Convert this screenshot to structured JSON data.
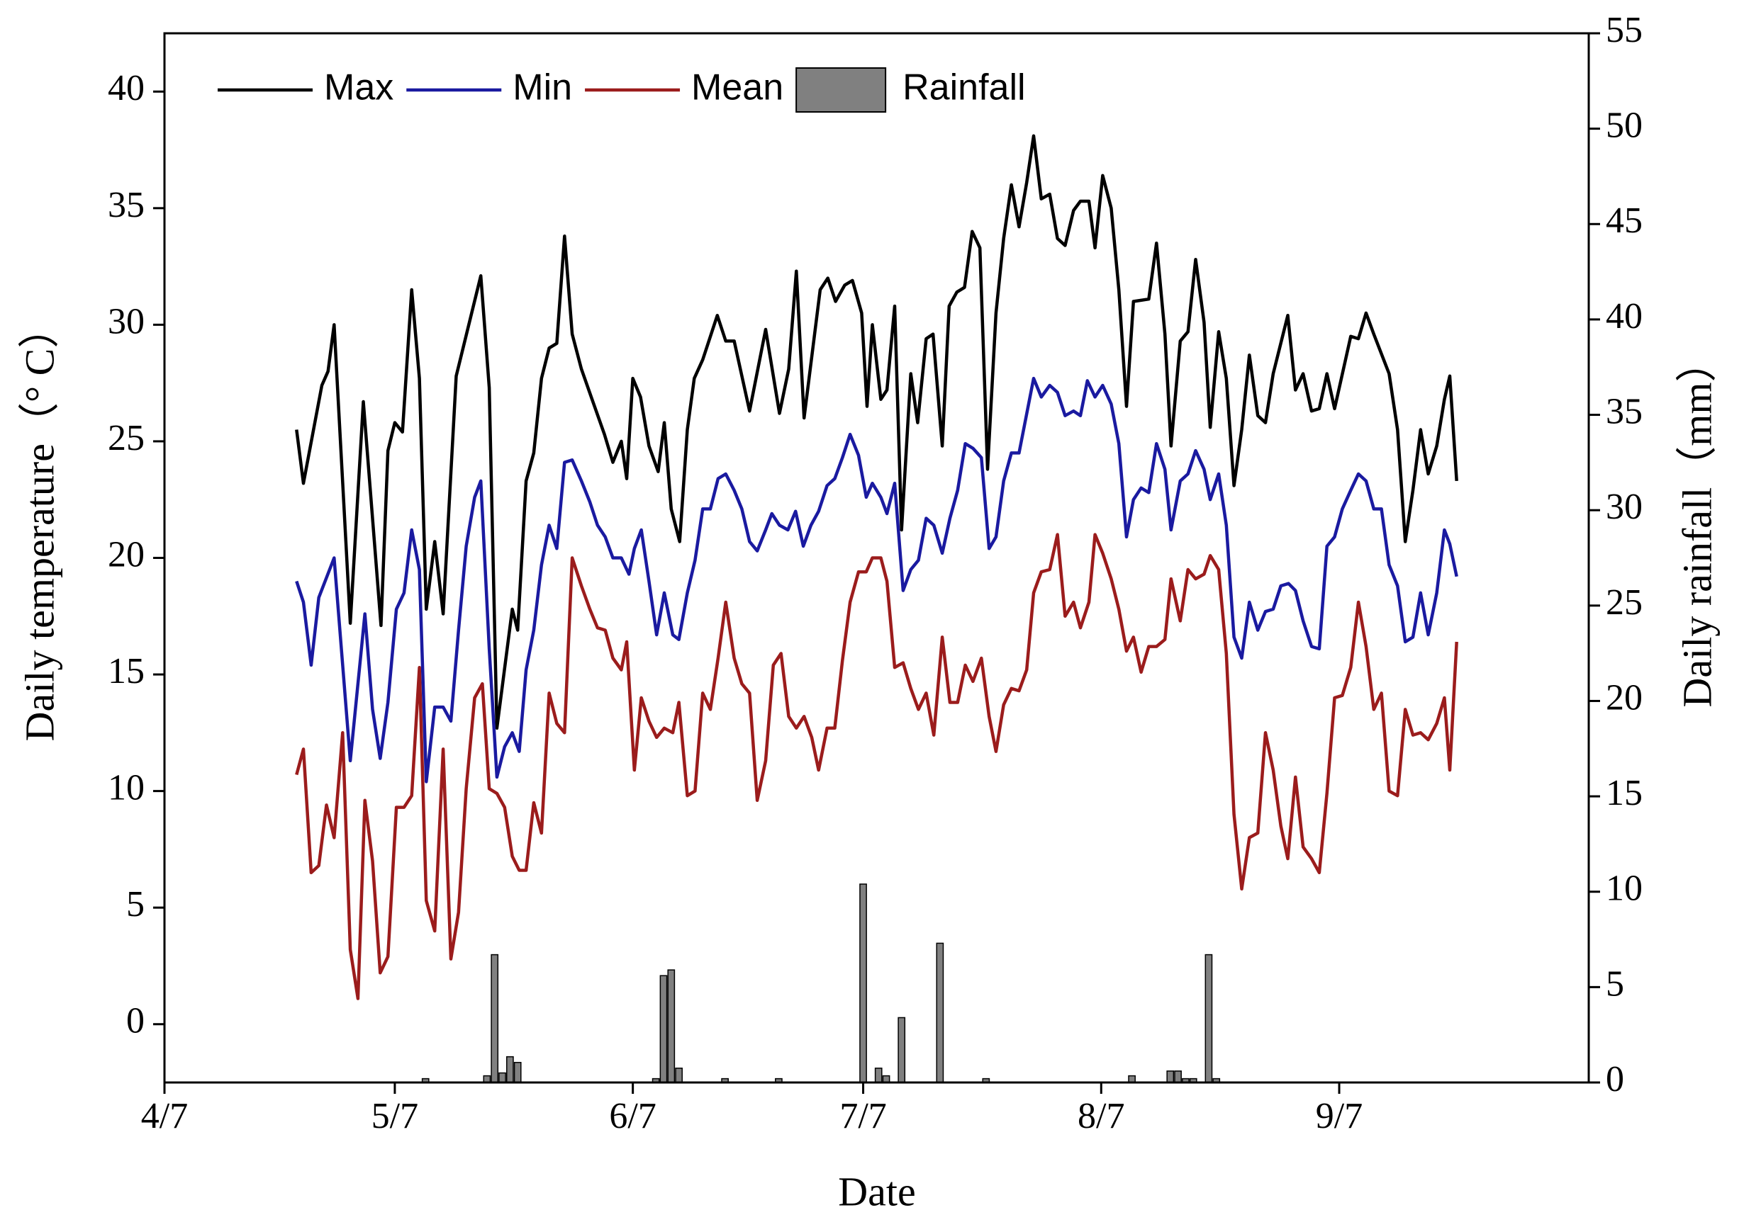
{
  "chart_data": {
    "type": "line",
    "x_label": "Date",
    "y_label": "Daily temperature（° C）",
    "y2_label": "Daily rainfall（mm）",
    "xlim": [
      0,
      185.5
    ],
    "xticks": [
      {
        "value": 0,
        "label": "4/7"
      },
      {
        "value": 30,
        "label": "5/7"
      },
      {
        "value": 61,
        "label": "6/7"
      },
      {
        "value": 91,
        "label": "7/7"
      },
      {
        "value": 122,
        "label": "8/7"
      },
      {
        "value": 153,
        "label": "9/7"
      }
    ],
    "ylim": [
      -2.5,
      42.5
    ],
    "yticks": [
      0,
      5,
      10,
      15,
      20,
      25,
      30,
      35,
      40
    ],
    "y2lim": [
      0,
      55
    ],
    "y2ticks": [
      0,
      5,
      10,
      15,
      20,
      25,
      30,
      35,
      40,
      45,
      50,
      55
    ],
    "legend": "upper left",
    "series": [
      {
        "name": "Max",
        "color": "#000000",
        "x": [
          17.2,
          18.1,
          20.5,
          21.3,
          22.1,
          24.2,
          25.9,
          28.2,
          29.1,
          30,
          31,
          32.2,
          33.2,
          34.1,
          35.2,
          36.3,
          38,
          41.2,
          42.3,
          43.3,
          45.3,
          46,
          47.1,
          48.1,
          49.1,
          50.1,
          51.1,
          52.1,
          53.1,
          54.3,
          55.8,
          57.3,
          58.4,
          59.5,
          60.2,
          61,
          62,
          63.1,
          64.3,
          65.1,
          66,
          67.1,
          68.1,
          69,
          70.1,
          72,
          73.1,
          74.2,
          76.2,
          78.3,
          80.1,
          81.3,
          82.3,
          83.3,
          85.4,
          86.4,
          87.4,
          88.6,
          89.6,
          90.8,
          91.5,
          92.2,
          93.3,
          94.1,
          95.1,
          96,
          97.2,
          98.1,
          99.2,
          100.1,
          101.3,
          102.2,
          103.2,
          104.2,
          105.2,
          106.2,
          107.2,
          108.3,
          109.3,
          110.3,
          111.3,
          112.3,
          113.2,
          114.2,
          115.3,
          116.3,
          117.3,
          118.4,
          119.3,
          120.4,
          121.2,
          122.2,
          123.3,
          124.3,
          125.3,
          126.2,
          128.2,
          129.2,
          130.3,
          131.1,
          132.3,
          133.3,
          134.3,
          135.4,
          136.2,
          137.3,
          138.3,
          139.3,
          140.3,
          141.3,
          142.4,
          143.4,
          144.4,
          146.3,
          147.3,
          148.3,
          149.4,
          150.4,
          151.4,
          152.4,
          154.5,
          155.5,
          156.5,
          157.5,
          159.5,
          160.6,
          161.6,
          162.6,
          163.6,
          164.6,
          165.7,
          166.7,
          167.4,
          168.3
        ],
        "values": [
          25.5,
          23.2,
          27.4,
          28,
          30,
          17.2,
          26.7,
          17.1,
          24.6,
          25.8,
          25.4,
          31.5,
          27.7,
          17.8,
          20.7,
          17.6,
          27.8,
          32.1,
          27.3,
          12.7,
          17.8,
          16.9,
          23.3,
          24.5,
          27.7,
          29,
          29.2,
          33.8,
          29.6,
          28.1,
          26.7,
          25.3,
          24.1,
          25,
          23.4,
          27.7,
          26.9,
          24.8,
          23.7,
          25.8,
          22.1,
          20.7,
          25.5,
          27.7,
          28.5,
          30.4,
          29.3,
          29.3,
          26.3,
          29.8,
          26.2,
          28.1,
          32.3,
          26,
          31.5,
          32,
          31,
          31.7,
          31.9,
          30.5,
          26.5,
          30,
          26.8,
          27.2,
          30.8,
          21.2,
          27.9,
          25.8,
          29.4,
          29.6,
          24.8,
          30.8,
          31.4,
          31.6,
          34,
          33.3,
          23.8,
          30.5,
          33.7,
          36,
          34.2,
          36.1,
          38.1,
          35.4,
          35.6,
          33.7,
          33.4,
          34.9,
          35.3,
          35.3,
          33.3,
          36.4,
          35,
          31.5,
          26.5,
          31,
          31.1,
          33.5,
          29.6,
          24.8,
          29.3,
          29.7,
          32.8,
          30.1,
          25.6,
          29.7,
          27.7,
          23.1,
          25.5,
          28.7,
          26.1,
          25.8,
          27.9,
          30.4,
          27.2,
          27.9,
          26.3,
          26.4,
          27.9,
          26.4,
          29.5,
          29.4,
          30.5,
          29.6,
          27.9,
          25.5,
          20.7,
          22.9,
          25.5,
          23.6,
          24.8,
          26.8,
          27.8,
          23.3
        ]
      },
      {
        "name": "Min",
        "color": "#1a1aa0",
        "x": [
          17.2,
          18.1,
          19.1,
          20.1,
          22.1,
          24.2,
          26.1,
          27.1,
          28.1,
          29.1,
          30.2,
          31.2,
          32.2,
          33.2,
          34.1,
          35.2,
          36.3,
          37.3,
          38.3,
          39.3,
          40.4,
          41.2,
          42.3,
          43.3,
          44.3,
          45.3,
          46.2,
          47.1,
          48.1,
          49.1,
          50.1,
          51.1,
          52.1,
          53.1,
          54.3,
          55.4,
          56.4,
          57.4,
          58.4,
          59.5,
          60.5,
          61.2,
          62.1,
          63.1,
          64.1,
          65.1,
          66.2,
          67,
          68.1,
          69.1,
          70.1,
          71.1,
          72.1,
          73.1,
          74.2,
          75.2,
          76.2,
          77.2,
          78.3,
          79.1,
          80.1,
          81.2,
          82.2,
          83.2,
          84.2,
          85.2,
          86.3,
          87.3,
          88.3,
          89.3,
          90.4,
          91.4,
          92.2,
          93.3,
          94.1,
          95.1,
          96.2,
          97.2,
          98.2,
          99.2,
          100.2,
          101.3,
          102.3,
          103.3,
          104.3,
          105.3,
          106.4,
          107.4,
          108.3,
          109.3,
          110.3,
          111.3,
          113.2,
          114.2,
          115.3,
          116.3,
          117.3,
          118.4,
          119.3,
          120.2,
          121.2,
          122.2,
          123.3,
          124.3,
          125.3,
          126.2,
          127.2,
          128.2,
          129.2,
          130.3,
          131.1,
          132.3,
          133.3,
          134.3,
          135.4,
          136.2,
          137.3,
          138.3,
          139.3,
          140.3,
          141.3,
          142.4,
          143.4,
          144.4,
          145.4,
          146.4,
          147.3,
          148.3,
          149.4,
          150.4,
          151.4,
          152.4,
          153.4,
          154.5,
          155.5,
          156.5,
          157.5,
          158.5,
          159.5,
          160.6,
          161.6,
          162.6,
          163.6,
          164.6,
          165.7,
          166.7,
          167.4,
          168.3
        ],
        "values": [
          19,
          18.1,
          15.4,
          18.3,
          20,
          11.3,
          17.6,
          13.5,
          11.4,
          13.8,
          17.8,
          18.5,
          21.2,
          19.5,
          10.4,
          13.6,
          13.6,
          13,
          16.9,
          20.5,
          22.6,
          23.3,
          16.1,
          10.6,
          11.9,
          12.5,
          11.7,
          15.2,
          16.9,
          19.7,
          21.4,
          20.4,
          24.1,
          24.2,
          23.3,
          22.4,
          21.4,
          20.9,
          20,
          20,
          19.3,
          20.4,
          21.2,
          19,
          16.7,
          18.5,
          16.7,
          16.5,
          18.5,
          19.9,
          22.1,
          22.1,
          23.4,
          23.6,
          22.9,
          22.1,
          20.7,
          20.3,
          21.2,
          21.9,
          21.4,
          21.2,
          22,
          20.5,
          21.4,
          22,
          23.1,
          23.4,
          24.3,
          25.3,
          24.4,
          22.6,
          23.2,
          22.6,
          21.9,
          23.2,
          18.6,
          19.5,
          19.9,
          21.7,
          21.4,
          20.2,
          21.7,
          22.9,
          24.9,
          24.7,
          24.3,
          20.4,
          20.9,
          23.3,
          24.5,
          24.5,
          27.7,
          26.9,
          27.4,
          27.1,
          26.1,
          26.3,
          26.1,
          27.6,
          26.9,
          27.4,
          26.6,
          24.9,
          20.9,
          22.5,
          23,
          22.8,
          24.9,
          23.8,
          21.2,
          23.3,
          23.6,
          24.6,
          23.8,
          22.5,
          23.6,
          21.4,
          16.6,
          15.7,
          18.1,
          16.9,
          17.7,
          17.8,
          18.8,
          18.9,
          18.6,
          17.3,
          16.2,
          16.1,
          20.5,
          20.9,
          22.1,
          22.9,
          23.6,
          23.3,
          22.1,
          22.1,
          19.7,
          18.8,
          16.4,
          16.6,
          18.5,
          16.7,
          18.5,
          21.2,
          20.6,
          19.2
        ]
      },
      {
        "name": "Mean",
        "color": "#9b1c1c",
        "x": [
          17.2,
          18.1,
          19.1,
          20.1,
          21.1,
          22.1,
          23.2,
          24.2,
          25.2,
          26.1,
          27.1,
          28.1,
          29.1,
          30.2,
          31.2,
          32.2,
          33.2,
          34.1,
          35.2,
          36.3,
          37.3,
          38.3,
          39.3,
          40.4,
          41.4,
          42.3,
          43.3,
          44.3,
          45.3,
          46.2,
          47.1,
          48.1,
          49.1,
          50.1,
          51.1,
          52.1,
          53.1,
          54.3,
          55.4,
          56.4,
          57.4,
          58.4,
          59.5,
          60.2,
          61.2,
          62.1,
          63.1,
          64.1,
          65.1,
          66.2,
          67,
          68.1,
          69.1,
          70.1,
          71.1,
          72.1,
          73.1,
          74.2,
          75.2,
          76.2,
          77.2,
          78.3,
          79.3,
          80.3,
          81.3,
          82.3,
          83.3,
          84.3,
          85.2,
          86.3,
          87.3,
          88.3,
          89.3,
          90.4,
          91.4,
          92.2,
          93.3,
          94.1,
          95.1,
          96.2,
          97.2,
          98.2,
          99.2,
          100.2,
          101.3,
          102.3,
          103.3,
          104.3,
          105.3,
          106.4,
          107.4,
          108.3,
          109.3,
          110.3,
          111.3,
          112.3,
          113.2,
          114.2,
          115.3,
          116.3,
          117.3,
          118.4,
          119.3,
          120.4,
          121.2,
          122.2,
          123.3,
          124.3,
          125.3,
          126.2,
          127.2,
          128.2,
          129.2,
          130.3,
          131.1,
          132.3,
          133.3,
          134.3,
          135.4,
          136.2,
          137.3,
          138.3,
          139.3,
          140.3,
          141.3,
          142.4,
          143.4,
          144.4,
          145.4,
          146.3,
          147.3,
          148.3,
          149.4,
          150.4,
          151.4,
          152.4,
          153.4,
          154.5,
          155.5,
          156.5,
          157.5,
          158.5,
          159.5,
          160.6,
          161.6,
          162.6,
          163.6,
          164.6,
          165.7,
          166.7,
          167.4,
          168.3
        ],
        "values": [
          10.7,
          11.8,
          6.5,
          6.8,
          9.4,
          8,
          12.5,
          3.2,
          1.1,
          9.6,
          7,
          2.2,
          2.9,
          9.3,
          9.3,
          9.8,
          15.3,
          5.3,
          4,
          11.8,
          2.8,
          4.8,
          10.1,
          14,
          14.6,
          10.1,
          9.9,
          9.3,
          7.2,
          6.6,
          6.6,
          9.5,
          8.2,
          14.2,
          12.9,
          12.5,
          20,
          18.8,
          17.8,
          17,
          16.9,
          15.7,
          15.2,
          16.4,
          10.9,
          14,
          13,
          12.3,
          12.7,
          12.5,
          13.8,
          9.8,
          10,
          14.2,
          13.5,
          15.7,
          18.1,
          15.7,
          14.6,
          14.2,
          9.6,
          11.3,
          15.4,
          15.9,
          13.2,
          12.7,
          13.2,
          12.3,
          10.9,
          12.7,
          12.7,
          15.6,
          18.1,
          19.4,
          19.4,
          20,
          20,
          19,
          15.3,
          15.5,
          14.4,
          13.5,
          14.2,
          12.4,
          16.6,
          13.8,
          13.8,
          15.4,
          14.7,
          15.7,
          13.2,
          11.7,
          13.7,
          14.4,
          14.3,
          15.2,
          18.5,
          19.4,
          19.5,
          21,
          17.5,
          18.1,
          17,
          18.1,
          21,
          20.2,
          19.1,
          17.8,
          16,
          16.6,
          15.1,
          16.2,
          16.2,
          16.5,
          19.1,
          17.3,
          19.5,
          19.1,
          19.3,
          20.1,
          19.5,
          15.9,
          9,
          5.8,
          8,
          8.2,
          12.5,
          10.9,
          8.5,
          7.1,
          10.6,
          7.6,
          7.1,
          6.5,
          9.9,
          14,
          14.1,
          15.3,
          18.1,
          16.2,
          13.5,
          14.2,
          10,
          9.8,
          13.5,
          12.4,
          12.5,
          12.2,
          12.9,
          14,
          10.9,
          16.4
        ]
      },
      {
        "name": "Rainfall",
        "color": "#808080",
        "type": "bar",
        "axis": "y2",
        "x": [
          34,
          42,
          43,
          44,
          45,
          46,
          64,
          65,
          66,
          67,
          73,
          80,
          91,
          93,
          94,
          96,
          101,
          107,
          126,
          131,
          132,
          133,
          134,
          136,
          137
        ],
        "values": [
          0.2,
          0.35,
          6.7,
          0.5,
          1.35,
          1.05,
          0.2,
          5.6,
          5.9,
          0.75,
          0.2,
          0.2,
          10.4,
          0.75,
          0.35,
          3.4,
          7.3,
          0.2,
          0.35,
          0.6,
          0.6,
          0.2,
          0.2,
          6.7,
          0.2
        ]
      }
    ]
  }
}
